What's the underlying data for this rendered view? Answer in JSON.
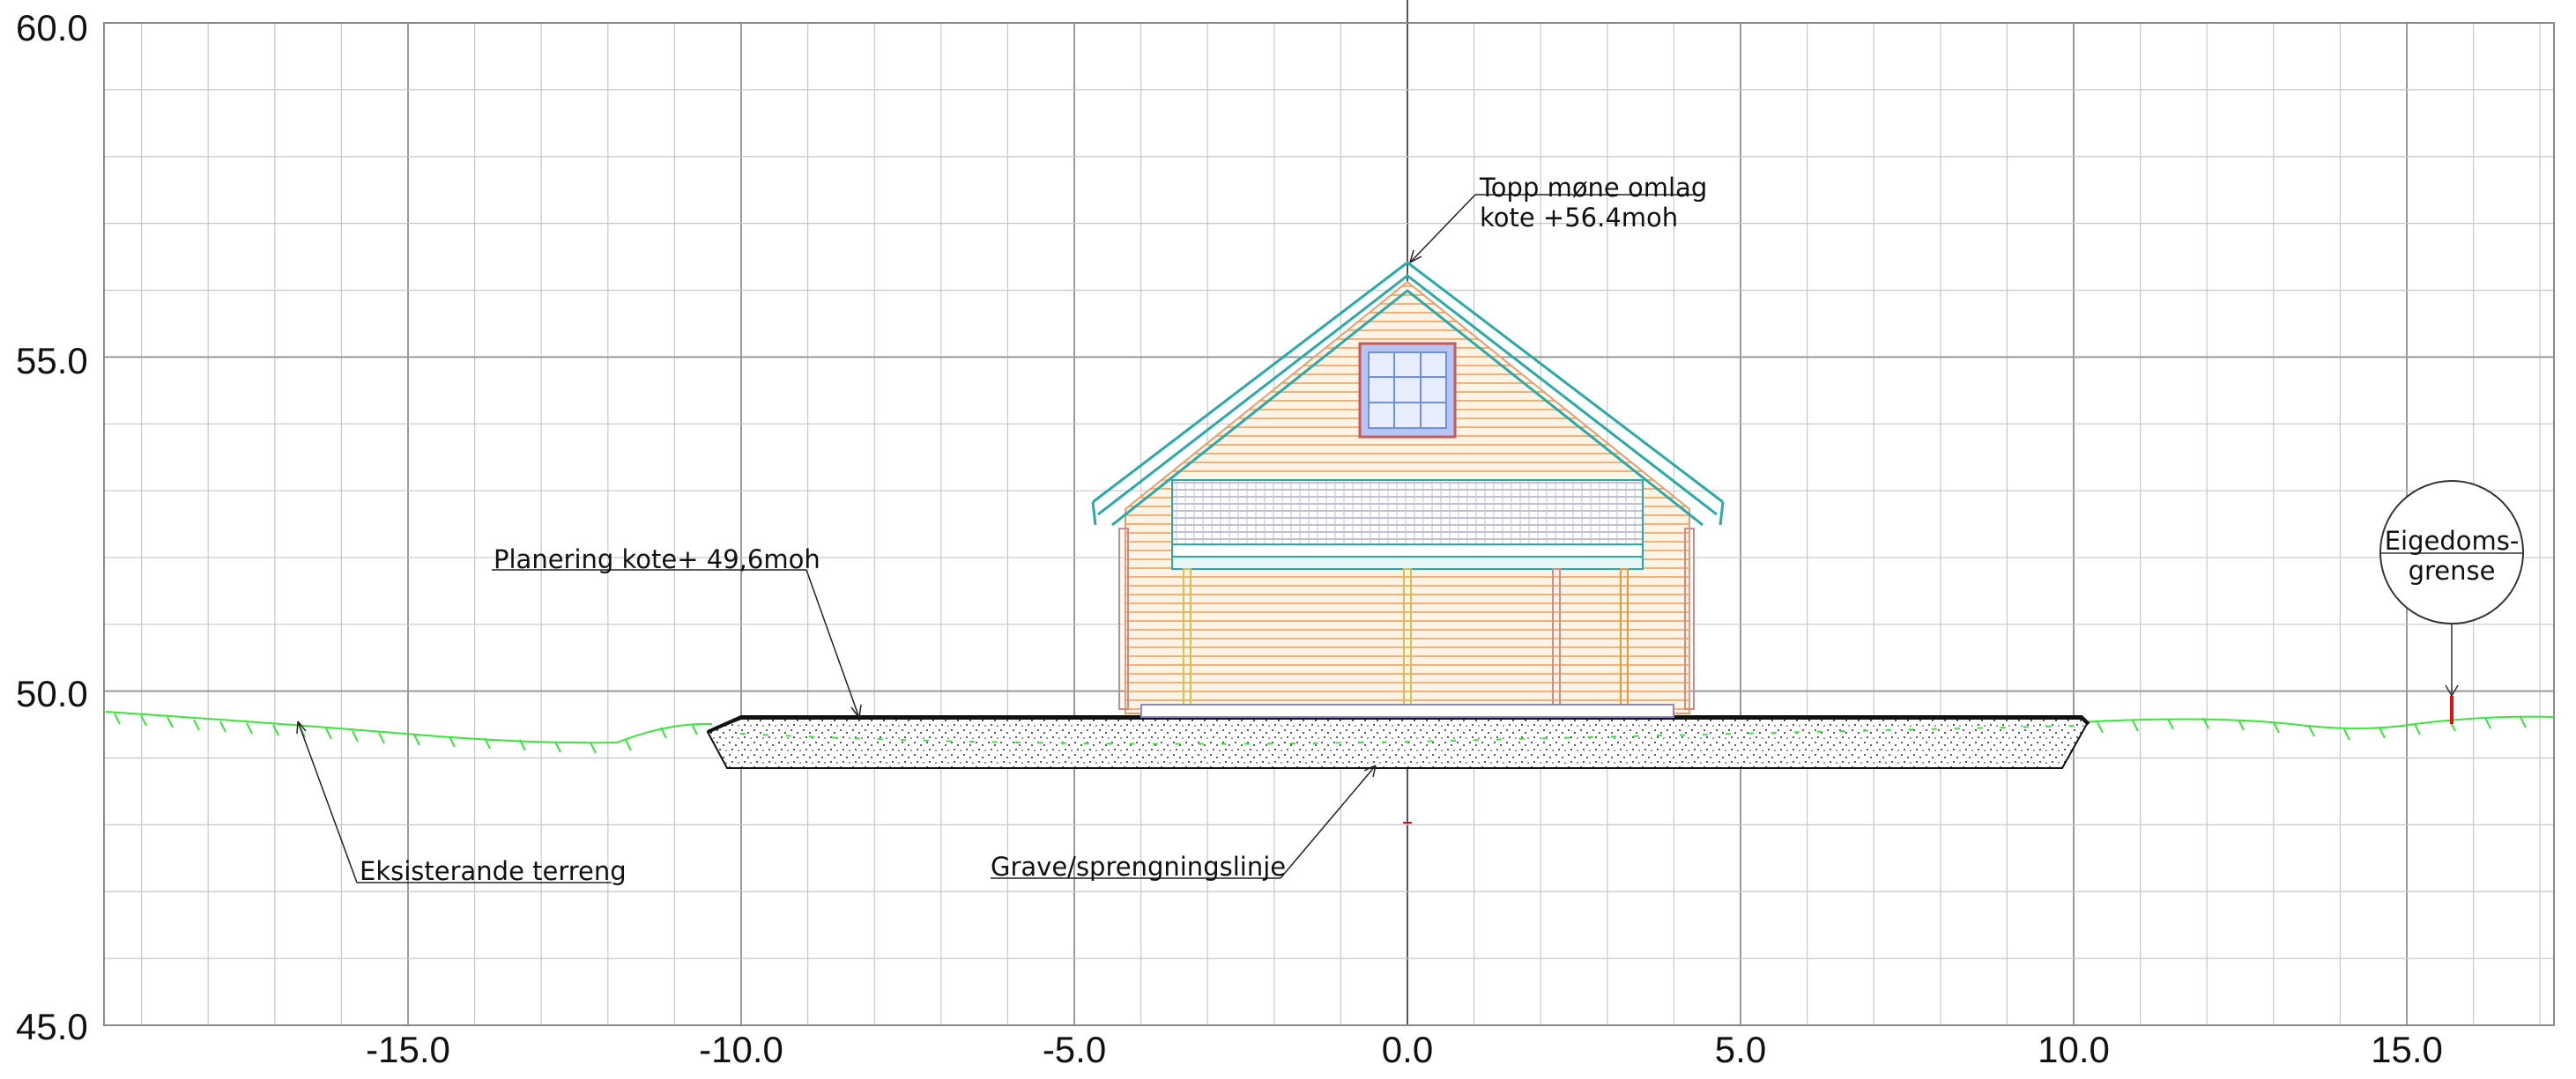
{
  "diagram": {
    "x_axis": {
      "min": -19.5,
      "max": 17.2,
      "ticks": [
        "-15.0",
        "-10.0",
        "-5.0",
        "0.0",
        "5.0",
        "10.0",
        "15.0"
      ],
      "tick_values": [
        -15,
        -10,
        -5,
        0,
        5,
        10,
        15
      ]
    },
    "y_axis": {
      "min": 45.0,
      "max": 60.0,
      "ticks": [
        "60.0",
        "55.0",
        "50.0",
        "45.0"
      ],
      "tick_values": [
        60,
        55,
        50,
        45
      ]
    },
    "annotations": {
      "ridge_line1": "Topp møne omlag",
      "ridge_line2": "kote +56.4moh",
      "planering": "Planering kote+ 49,6moh",
      "terrain": "Eksisterande terreng",
      "excavation": "Grave/sprengningslinje",
      "boundary_line1": "Eigedoms-",
      "boundary_line2": "grense"
    },
    "levels": {
      "ridge": 56.4,
      "planering": 49.6
    },
    "colors": {
      "grid": "#c8c8c8",
      "grid_major": "#9a9a9a",
      "terrain": "#39e639",
      "roof": "#2aa9a9",
      "wall_panel": "#f0b27a",
      "window_blue": "#6f8fe0",
      "boundary": "#e01010",
      "fill_black": "#111111"
    }
  }
}
